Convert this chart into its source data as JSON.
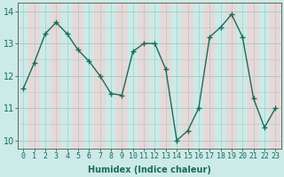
{
  "x": [
    0,
    1,
    2,
    3,
    4,
    5,
    6,
    7,
    8,
    9,
    10,
    11,
    12,
    13,
    14,
    15,
    16,
    17,
    18,
    19,
    20,
    21,
    22,
    23
  ],
  "y": [
    11.6,
    12.4,
    13.3,
    13.65,
    13.3,
    12.8,
    12.45,
    12.0,
    11.45,
    11.4,
    12.75,
    13.0,
    13.0,
    12.2,
    10.0,
    10.3,
    11.0,
    13.2,
    13.5,
    13.9,
    13.2,
    11.3,
    10.4,
    11.0
  ],
  "line_color": "#1a6b5a",
  "marker": "+",
  "marker_size": 4,
  "xlabel": "Humidex (Indice chaleur)",
  "xlim": [
    -0.5,
    23.5
  ],
  "ylim": [
    9.75,
    14.25
  ],
  "xtick_labels": [
    "0",
    "1",
    "2",
    "3",
    "4",
    "5",
    "6",
    "7",
    "8",
    "9",
    "10",
    "11",
    "12",
    "13",
    "14",
    "15",
    "16",
    "17",
    "18",
    "19",
    "20",
    "21",
    "22",
    "23"
  ],
  "ytick_values": [
    10,
    11,
    12,
    13,
    14
  ],
  "bg_color": "#cceae7",
  "band_color_even": "#cceae7",
  "band_color_odd": "#e8d8d8",
  "grid_color": "#aaccc8",
  "tick_color": "#1a6b5a",
  "label_fontsize": 7,
  "tick_fontsize": 6,
  "linewidth": 1.0
}
